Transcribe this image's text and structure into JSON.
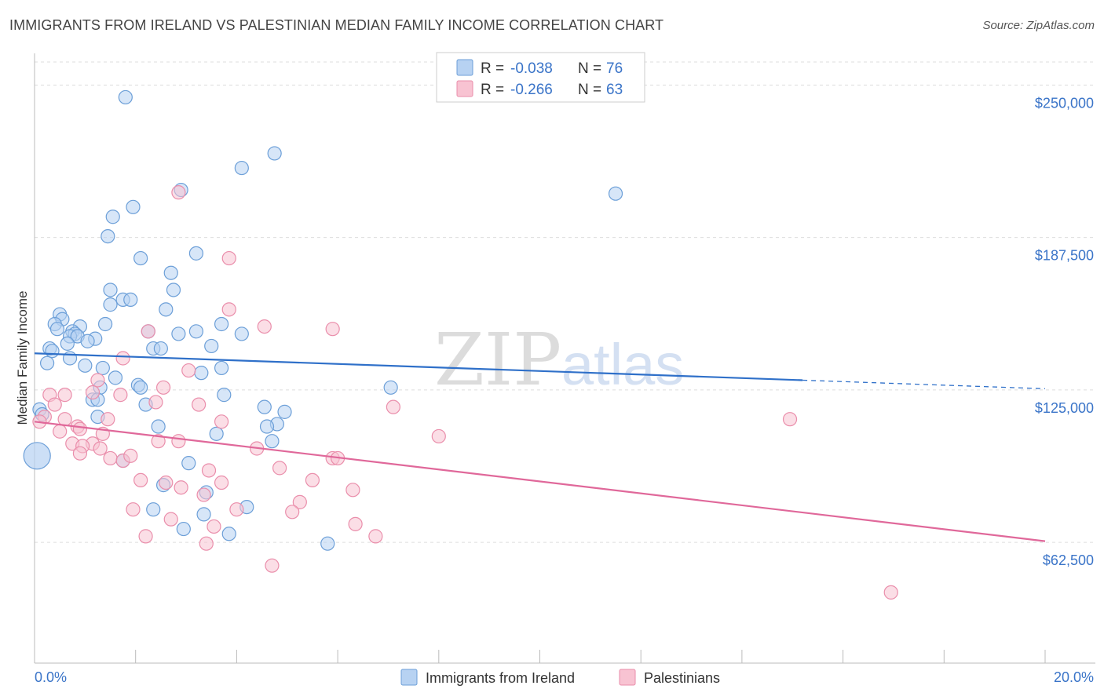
{
  "header": {
    "title": "IMMIGRANTS FROM IRELAND VS PALESTINIAN MEDIAN FAMILY INCOME CORRELATION CHART",
    "source": "Source: ZipAtlas.com"
  },
  "watermark": {
    "zip": "ZIP",
    "atlas": "atlas"
  },
  "legend": {
    "r_label": "R =",
    "n_label": "N =",
    "series": [
      {
        "r": "-0.038",
        "n": "76"
      },
      {
        "r": "-0.266",
        "n": "63"
      }
    ]
  },
  "colors": {
    "blue_fill": "#b7d2f2",
    "blue_stroke": "#6c9fd8",
    "blue_line": "#2f70c9",
    "pink_fill": "#f8c3d2",
    "pink_stroke": "#ea8eab",
    "pink_line": "#e0689a",
    "grid": "#dddddd",
    "axis_label": "#3a74c8"
  },
  "chart_data": {
    "type": "scatter",
    "title": "IMMIGRANTS FROM IRELAND VS PALESTINIAN MEDIAN FAMILY INCOME CORRELATION CHART",
    "xlabel": "",
    "ylabel": "Median Family Income",
    "xlim": [
      0,
      20
    ],
    "ylim": [
      13000,
      263000
    ],
    "x_tick_labels": [
      "0.0%",
      "20.0%"
    ],
    "y_ticks": [
      62500,
      125000,
      187500,
      250000
    ],
    "y_tick_labels": [
      "$62,500",
      "$125,000",
      "$187,500",
      "$250,000"
    ],
    "grid": true,
    "series": [
      {
        "name": "Immigrants from Ireland",
        "color": "blue",
        "trend": {
          "x": [
            0,
            15.2
          ],
          "y": [
            140000,
            129000
          ],
          "dashed_to": [
            20,
            125500
          ]
        },
        "points": [
          [
            1.8,
            245000
          ],
          [
            4.75,
            222000
          ],
          [
            4.1,
            216000
          ],
          [
            2.9,
            207000
          ],
          [
            11.5,
            205500
          ],
          [
            1.95,
            200000
          ],
          [
            1.55,
            196000
          ],
          [
            1.45,
            188000
          ],
          [
            3.2,
            181000
          ],
          [
            2.1,
            179000
          ],
          [
            2.7,
            173000
          ],
          [
            1.5,
            166000
          ],
          [
            2.75,
            166000
          ],
          [
            1.75,
            162000
          ],
          [
            1.9,
            162000
          ],
          [
            1.5,
            160000
          ],
          [
            2.6,
            158000
          ],
          [
            0.5,
            156000
          ],
          [
            0.55,
            154000
          ],
          [
            0.4,
            152000
          ],
          [
            1.4,
            152000
          ],
          [
            3.7,
            152000
          ],
          [
            0.9,
            151000
          ],
          [
            0.45,
            150000
          ],
          [
            0.75,
            149000
          ],
          [
            2.25,
            149000
          ],
          [
            3.2,
            149000
          ],
          [
            0.8,
            148000
          ],
          [
            0.7,
            147000
          ],
          [
            0.85,
            147000
          ],
          [
            4.1,
            148000
          ],
          [
            2.85,
            148000
          ],
          [
            1.2,
            146000
          ],
          [
            1.05,
            145000
          ],
          [
            0.65,
            144000
          ],
          [
            3.5,
            143000
          ],
          [
            2.35,
            142000
          ],
          [
            0.3,
            142000
          ],
          [
            2.5,
            142000
          ],
          [
            0.35,
            141000
          ],
          [
            0.7,
            138000
          ],
          [
            0.25,
            136000
          ],
          [
            1.0,
            135000
          ],
          [
            3.7,
            134000
          ],
          [
            1.35,
            134000
          ],
          [
            3.3,
            132000
          ],
          [
            1.6,
            130000
          ],
          [
            2.05,
            127000
          ],
          [
            2.1,
            126000
          ],
          [
            1.3,
            126000
          ],
          [
            7.05,
            126000
          ],
          [
            3.75,
            123000
          ],
          [
            1.15,
            121000
          ],
          [
            1.25,
            121000
          ],
          [
            2.2,
            119000
          ],
          [
            4.55,
            118000
          ],
          [
            4.95,
            116000
          ],
          [
            1.25,
            114000
          ],
          [
            4.8,
            111000
          ],
          [
            4.6,
            110000
          ],
          [
            2.45,
            110000
          ],
          [
            0.1,
            117000
          ],
          [
            0.15,
            115000
          ],
          [
            3.6,
            107000
          ],
          [
            4.7,
            104000
          ],
          [
            1.75,
            96000
          ],
          [
            3.05,
            95000
          ],
          [
            2.55,
            86000
          ],
          [
            3.4,
            83000
          ],
          [
            2.35,
            76000
          ],
          [
            4.2,
            77000
          ],
          [
            3.35,
            74000
          ],
          [
            2.95,
            68000
          ],
          [
            3.85,
            66000
          ],
          [
            5.8,
            62000
          ],
          [
            0.05,
            98000
          ]
        ]
      },
      {
        "name": "Palestinians",
        "color": "pink",
        "trend": {
          "x": [
            0,
            20
          ],
          "y": [
            112000,
            63000
          ]
        },
        "points": [
          [
            2.85,
            206000
          ],
          [
            3.85,
            179000
          ],
          [
            3.85,
            158000
          ],
          [
            2.25,
            149000
          ],
          [
            4.55,
            151000
          ],
          [
            5.9,
            150000
          ],
          [
            1.75,
            138000
          ],
          [
            3.05,
            133000
          ],
          [
            1.25,
            129000
          ],
          [
            2.55,
            126000
          ],
          [
            1.15,
            124000
          ],
          [
            1.7,
            123000
          ],
          [
            0.3,
            123000
          ],
          [
            0.6,
            123000
          ],
          [
            2.4,
            120000
          ],
          [
            3.25,
            119000
          ],
          [
            0.4,
            119000
          ],
          [
            7.1,
            118000
          ],
          [
            0.2,
            114000
          ],
          [
            0.6,
            113000
          ],
          [
            1.45,
            113000
          ],
          [
            3.7,
            112000
          ],
          [
            14.95,
            113000
          ],
          [
            0.1,
            112000
          ],
          [
            0.85,
            110000
          ],
          [
            0.9,
            109000
          ],
          [
            0.5,
            108000
          ],
          [
            1.35,
            107000
          ],
          [
            8.0,
            106000
          ],
          [
            2.45,
            104000
          ],
          [
            2.85,
            104000
          ],
          [
            0.75,
            103000
          ],
          [
            1.15,
            103000
          ],
          [
            0.95,
            102000
          ],
          [
            4.4,
            101000
          ],
          [
            1.3,
            101000
          ],
          [
            0.9,
            99000
          ],
          [
            1.5,
            97000
          ],
          [
            1.75,
            96000
          ],
          [
            5.9,
            97000
          ],
          [
            6.0,
            97000
          ],
          [
            4.85,
            93000
          ],
          [
            3.45,
            92000
          ],
          [
            1.9,
            98000
          ],
          [
            2.1,
            88000
          ],
          [
            2.6,
            87000
          ],
          [
            3.7,
            87000
          ],
          [
            5.5,
            88000
          ],
          [
            2.9,
            85000
          ],
          [
            3.35,
            82000
          ],
          [
            6.3,
            84000
          ],
          [
            5.25,
            79000
          ],
          [
            4.0,
            76000
          ],
          [
            1.95,
            76000
          ],
          [
            5.1,
            75000
          ],
          [
            2.7,
            72000
          ],
          [
            6.35,
            70000
          ],
          [
            3.55,
            69000
          ],
          [
            2.2,
            65000
          ],
          [
            6.75,
            65000
          ],
          [
            3.4,
            62000
          ],
          [
            4.7,
            53000
          ],
          [
            16.95,
            42000
          ]
        ]
      }
    ]
  }
}
